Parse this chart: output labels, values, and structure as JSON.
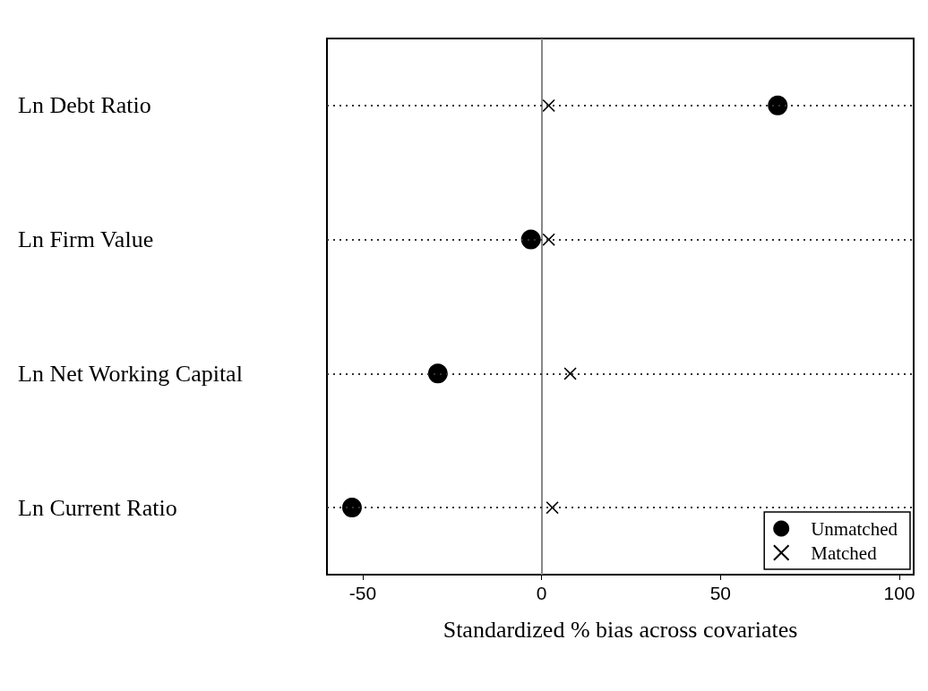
{
  "chart_data": {
    "type": "scatter",
    "xlabel": "Standardized % bias across covariates",
    "categories": [
      "Ln Debt Ratio",
      "Ln Firm Value",
      "Ln Net Working Capital",
      "Ln Current Ratio"
    ],
    "series": [
      {
        "name": "Unmatched",
        "color": "#000000",
        "marker": "circle",
        "values": [
          66,
          -3,
          -29,
          -53
        ]
      },
      {
        "name": "Matched",
        "color": "#000000",
        "marker": "cross",
        "values": [
          2,
          2,
          8,
          3
        ]
      }
    ],
    "orientation": "horizontal",
    "xlim": [
      -60,
      104
    ],
    "xticks": [
      -50,
      0,
      50,
      100
    ],
    "ref_lines": [
      {
        "axis": "x",
        "value": 0,
        "color": "#888888",
        "line_style": "solid"
      }
    ],
    "grid": "y",
    "legend": "bottom right"
  }
}
